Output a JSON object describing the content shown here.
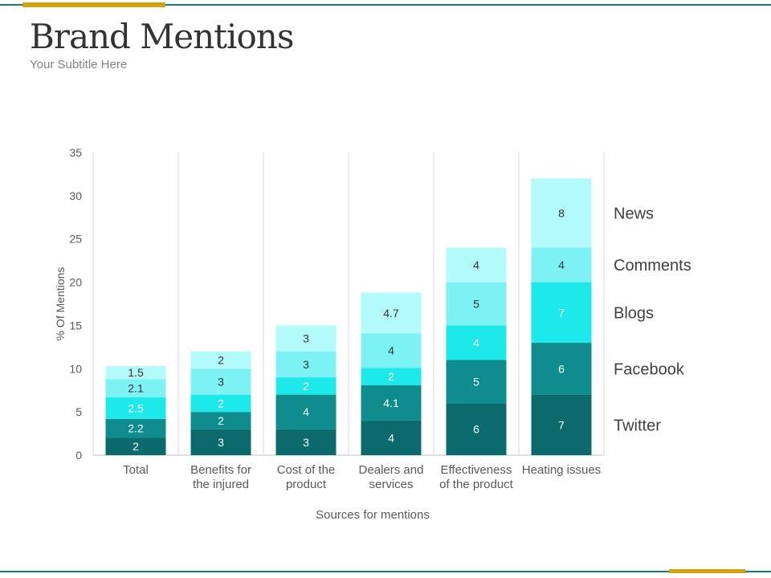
{
  "title": "Brand Mentions",
  "subtitle": "Your Subtitle Here",
  "colors": {
    "accent_line": "#137a7f",
    "accent_gold": "#d4a20f",
    "Twitter": "#0b6b6c",
    "Facebook": "#0f8c8d",
    "Blogs": "#1de8ea",
    "Comments": "#7df2f4",
    "News": "#b3fafb"
  },
  "chart_data": {
    "type": "bar",
    "stacked": true,
    "categories": [
      "Total",
      "Benefits for the injured",
      "Cost of the product",
      "Dealers and services",
      "Effectiveness of the product",
      "Heating issues"
    ],
    "category_lines": [
      [
        "Total"
      ],
      [
        "Benefits for",
        "the injured"
      ],
      [
        "Cost of the",
        "product"
      ],
      [
        "Dealers and",
        "services"
      ],
      [
        "Effectiveness",
        "of the product"
      ],
      [
        "Heating issues"
      ]
    ],
    "series": [
      {
        "name": "Twitter",
        "values": [
          2,
          3,
          3,
          4,
          6,
          7
        ]
      },
      {
        "name": "Facebook",
        "values": [
          2.2,
          2,
          4,
          4.1,
          5,
          6
        ]
      },
      {
        "name": "Blogs",
        "values": [
          2.5,
          2,
          2,
          2,
          4,
          7
        ]
      },
      {
        "name": "Comments",
        "values": [
          2.1,
          3,
          3,
          4,
          5,
          4
        ]
      },
      {
        "name": "News",
        "values": [
          1.5,
          2,
          3,
          4.7,
          4,
          8
        ]
      }
    ],
    "xlabel": "Sources for mentions",
    "ylabel": "% Of Mentions",
    "ylim": [
      0,
      35
    ],
    "yticks": [
      0,
      5,
      10,
      15,
      20,
      25,
      30,
      35
    ],
    "grid": "vertical category separators",
    "legend": "right"
  }
}
